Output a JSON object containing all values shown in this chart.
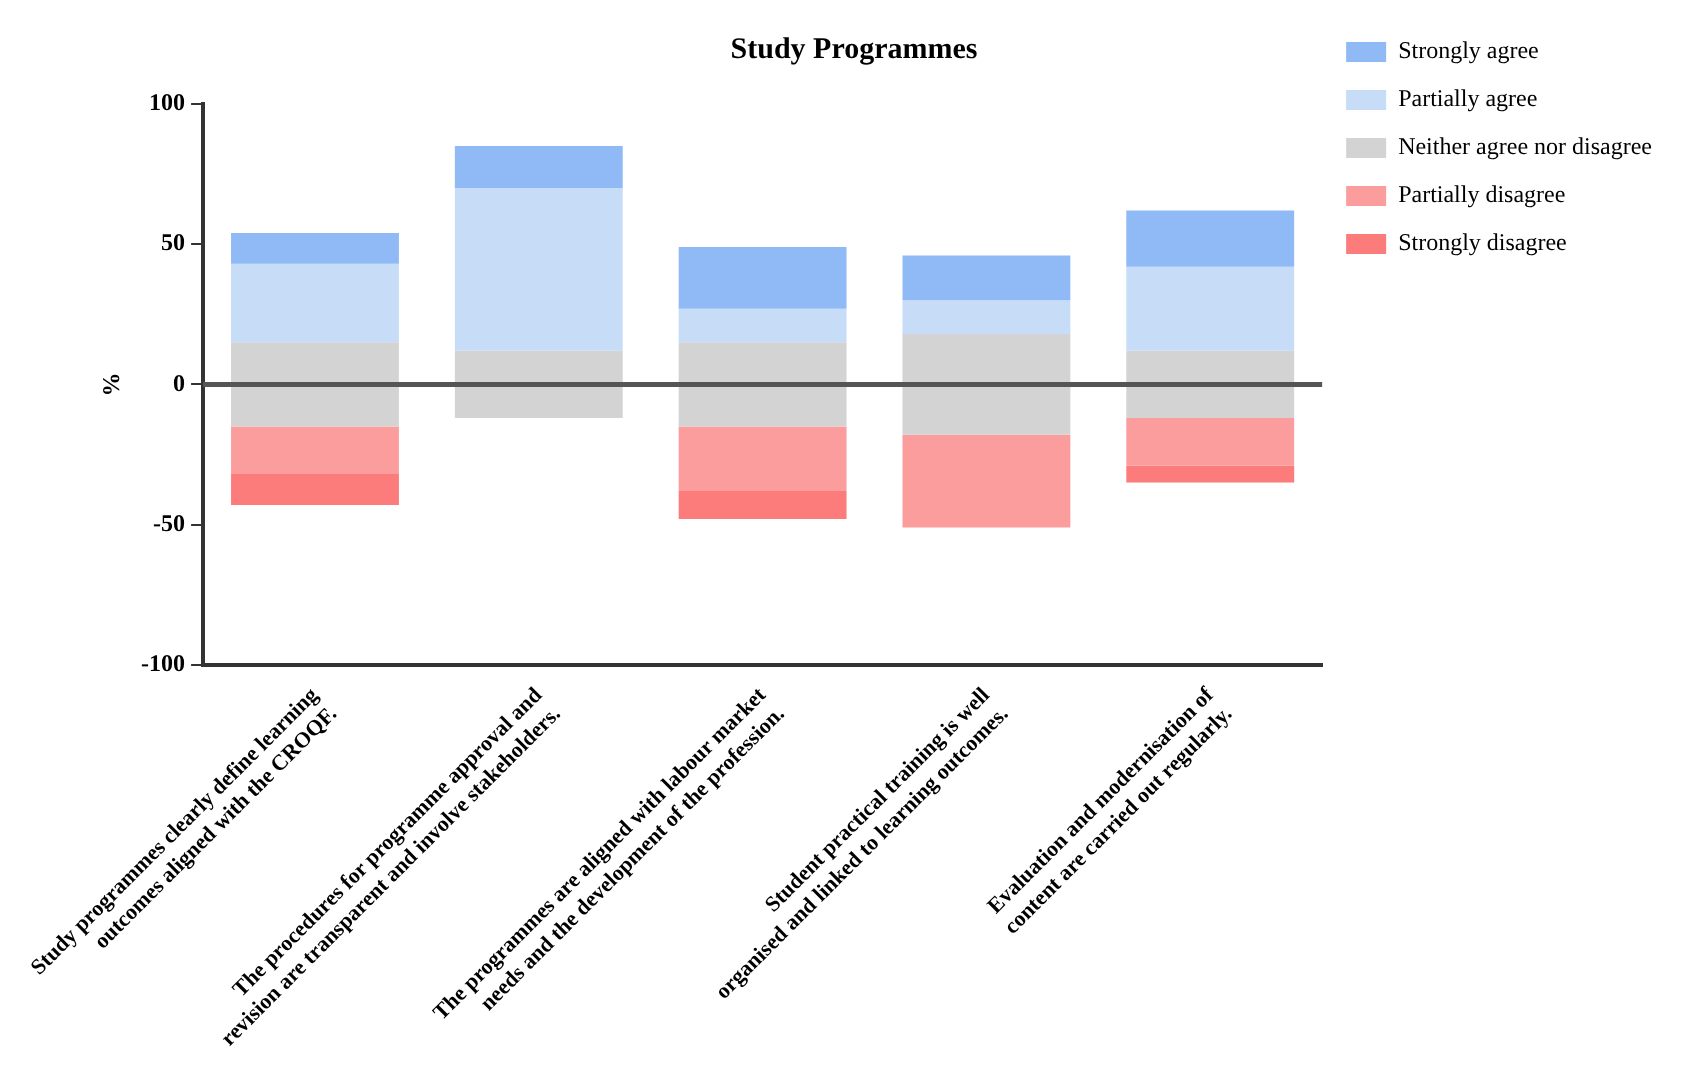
{
  "chart_data": {
    "type": "bar",
    "title": "Study Programmes",
    "ylabel": "%",
    "categories": [
      "Study programmes clearly define learning outcomes aligned with the CROQF.",
      "The procedures for programme approval and revision are transparent and involve stakeholders.",
      "The programmes are aligned with labour market needs and the development of the profession.",
      "Student practical training is well organised and linked to learning outcomes.",
      "Evaluation and modernisation of content are carried out regularly."
    ],
    "series": [
      {
        "name": "Strongly agree",
        "color": "#8fbaf5",
        "base": [
          43,
          70,
          27,
          30,
          42
        ],
        "values": [
          11,
          15,
          22,
          16,
          20
        ]
      },
      {
        "name": "Partially agree",
        "color": "#c6dcf7",
        "base": [
          15,
          12,
          15,
          18,
          12
        ],
        "values": [
          28,
          58,
          12,
          12,
          30
        ]
      },
      {
        "name": "Neither agree nor disagree",
        "color": "#d3d3d3",
        "base": [
          -15,
          -12,
          -15,
          -18,
          -12
        ],
        "values": [
          30,
          24,
          30,
          36,
          24
        ]
      },
      {
        "name": "Partially disagree",
        "color": "#fc9d9d",
        "base": [
          -15,
          null,
          -15,
          -18,
          -12
        ],
        "values": [
          -17,
          null,
          -23,
          -33,
          -17
        ]
      },
      {
        "name": "Strongly disagree",
        "color": "#fc7b7b",
        "base": [
          -32,
          null,
          -38,
          null,
          -29
        ],
        "values": [
          -11,
          null,
          -10,
          null,
          -6
        ]
      }
    ],
    "ylim": [
      -100,
      100
    ],
    "yticks": [
      -100,
      -50,
      0,
      50,
      100
    ],
    "ref_lines": [
      {
        "axis": "y",
        "value": 0,
        "color": "#555555"
      }
    ],
    "grid": false,
    "legend": "right"
  }
}
